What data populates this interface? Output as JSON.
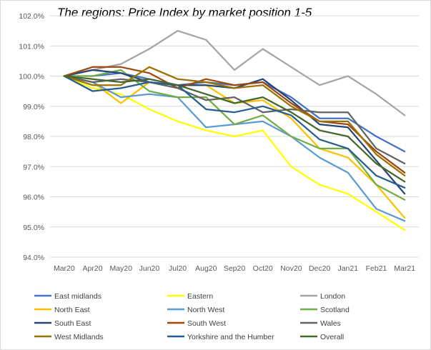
{
  "chart_data": {
    "type": "line",
    "title": "The regions: Price Index by market position 1-5",
    "xlabel": "",
    "ylabel": "",
    "ylim": [
      94.0,
      102.0
    ],
    "y_ticks": [
      "94.0%",
      "95.0%",
      "96.0%",
      "97.0%",
      "98.0%",
      "99.0%",
      "100.0%",
      "101.0%",
      "102.0%"
    ],
    "categories": [
      "Mar20",
      "Apr20",
      "May20",
      "Jun20",
      "Jul20",
      "Aug20",
      "Sep20",
      "Oct20",
      "Nov20",
      "Dec20",
      "Jan21",
      "Feb21",
      "Mar21"
    ],
    "grid": true,
    "legend_position": "bottom",
    "series": [
      {
        "name": "East midlands",
        "color": "#4472C4",
        "values": [
          100.0,
          100.0,
          100.1,
          99.9,
          99.7,
          99.8,
          99.7,
          99.8,
          99.3,
          98.6,
          98.6,
          98.0,
          97.5
        ]
      },
      {
        "name": "Eastern",
        "color": "#FFFF00",
        "values": [
          100.0,
          99.6,
          99.4,
          98.9,
          98.5,
          98.2,
          98.0,
          98.2,
          97.0,
          96.4,
          96.1,
          95.5,
          94.9
        ]
      },
      {
        "name": "London",
        "color": "#A5A5A5",
        "values": [
          100.0,
          100.2,
          100.4,
          100.9,
          101.5,
          101.2,
          100.2,
          100.9,
          100.3,
          99.7,
          100.0,
          99.4,
          98.7
        ]
      },
      {
        "name": "North East",
        "color": "#FFC000",
        "values": [
          100.0,
          99.8,
          99.1,
          99.8,
          99.7,
          99.7,
          99.1,
          99.2,
          98.6,
          97.6,
          97.3,
          96.4,
          95.3
        ]
      },
      {
        "name": "North West",
        "color": "#5B9BD5",
        "values": [
          100.0,
          99.8,
          99.3,
          99.4,
          99.3,
          98.3,
          98.4,
          98.5,
          98.0,
          97.3,
          96.8,
          95.6,
          95.2
        ]
      },
      {
        "name": "Scotland",
        "color": "#70AD47",
        "values": [
          100.0,
          100.0,
          100.2,
          99.5,
          99.3,
          99.3,
          98.4,
          98.7,
          98.0,
          97.6,
          97.6,
          96.4,
          95.9
        ]
      },
      {
        "name": "South East",
        "color": "#264478",
        "values": [
          100.0,
          100.2,
          100.1,
          99.8,
          99.7,
          99.7,
          99.6,
          99.9,
          99.2,
          98.4,
          98.3,
          97.2,
          96.1
        ]
      },
      {
        "name": "South West",
        "color": "#9E480E",
        "values": [
          100.0,
          100.3,
          100.3,
          100.1,
          99.6,
          99.9,
          99.7,
          99.8,
          99.1,
          98.5,
          98.4,
          97.5,
          96.8
        ]
      },
      {
        "name": "Wales",
        "color": "#636363",
        "values": [
          100.0,
          99.8,
          99.9,
          99.8,
          99.6,
          99.2,
          99.3,
          98.8,
          98.9,
          98.8,
          98.8,
          97.6,
          97.1
        ]
      },
      {
        "name": "West Midlands",
        "color": "#997300",
        "values": [
          100.0,
          99.7,
          99.7,
          100.3,
          99.9,
          99.8,
          99.6,
          99.7,
          99.0,
          98.5,
          98.5,
          97.4,
          96.7
        ]
      },
      {
        "name": "Yorkshire and the Humber",
        "color": "#255E91",
        "values": [
          100.0,
          99.5,
          99.6,
          99.8,
          99.7,
          98.9,
          98.8,
          99.0,
          98.7,
          97.9,
          97.6,
          96.7,
          96.3
        ]
      },
      {
        "name": "Overall",
        "color": "#43682B",
        "values": [
          100.0,
          99.9,
          99.8,
          99.9,
          99.7,
          99.4,
          99.1,
          99.3,
          98.8,
          98.2,
          98.0,
          97.1,
          96.5
        ]
      }
    ]
  }
}
